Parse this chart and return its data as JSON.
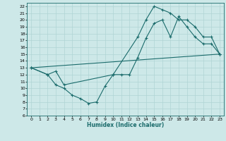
{
  "xlabel": "Humidex (Indice chaleur)",
  "xlim": [
    -0.5,
    23.5
  ],
  "ylim": [
    6,
    22.5
  ],
  "yticks": [
    6,
    7,
    8,
    9,
    10,
    11,
    12,
    13,
    14,
    15,
    16,
    17,
    18,
    19,
    20,
    21,
    22
  ],
  "xticks": [
    0,
    1,
    2,
    3,
    4,
    5,
    6,
    7,
    8,
    9,
    10,
    11,
    12,
    13,
    14,
    15,
    16,
    17,
    18,
    19,
    20,
    21,
    22,
    23
  ],
  "bg_color": "#cde8e8",
  "grid_color": "#b0d4d4",
  "line_color": "#1a6b6b",
  "line1_x": [
    0,
    2,
    3,
    4,
    5,
    6,
    7,
    8,
    9,
    10,
    11,
    12,
    13,
    14,
    15,
    16,
    17,
    18,
    19,
    20,
    21,
    22,
    23
  ],
  "line1_y": [
    13,
    12,
    10.5,
    10,
    9,
    8.5,
    7.8,
    8,
    10.3,
    12,
    12,
    12,
    14.5,
    17.3,
    19.5,
    20,
    17.5,
    20.5,
    19,
    17.5,
    16.5,
    16.5,
    15
  ],
  "line2_x": [
    0,
    2,
    3,
    4,
    10,
    13,
    14,
    15,
    16,
    17,
    18,
    19,
    20,
    21,
    22,
    23
  ],
  "line2_y": [
    13,
    12,
    12.5,
    10.5,
    12,
    17.5,
    20,
    22,
    21.5,
    21,
    20,
    20,
    19,
    17.5,
    17.5,
    15
  ],
  "line3_x": [
    0,
    23
  ],
  "line3_y": [
    13,
    15
  ],
  "marker": "+"
}
